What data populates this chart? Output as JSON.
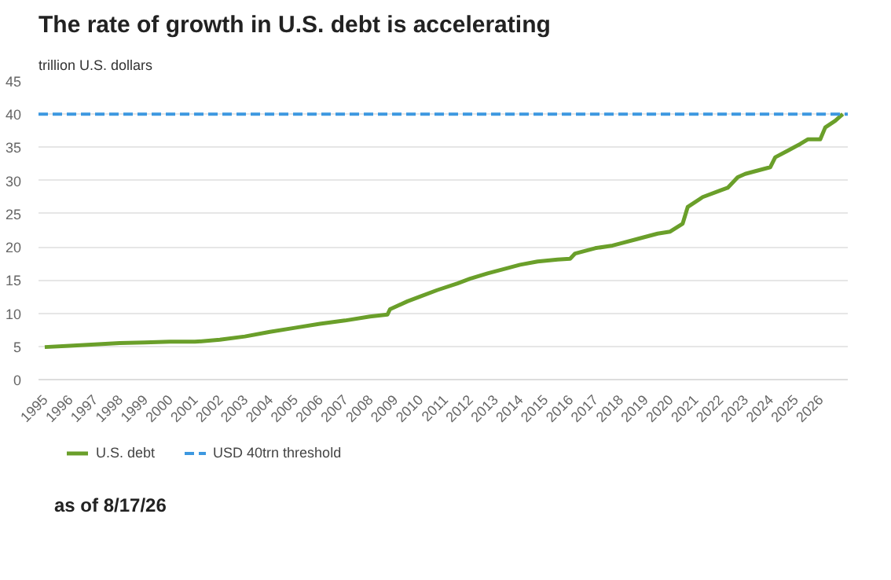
{
  "chart_data": {
    "type": "line",
    "title": "The rate of growth in U.S. debt is accelerating",
    "ylabel": "trillion U.S. dollars",
    "series": [
      {
        "name": "U.S. debt",
        "color": "#6a9f2a",
        "x": [
          1995,
          1996,
          1997,
          1998,
          1999,
          2000,
          2001,
          2002,
          2003,
          2004,
          2005,
          2006,
          2007,
          2008,
          2008.7,
          2008.8,
          2009.5,
          2010,
          2010.7,
          2011.5,
          2012,
          2012.7,
          2013.5,
          2014,
          2014.7,
          2015.5,
          2016,
          2016.2,
          2017,
          2017.7,
          2018,
          2018.7,
          2019.5,
          2020,
          2020.5,
          2020.7,
          2021.3,
          2022,
          2022.3,
          2022.7,
          2023,
          2023.5,
          2024,
          2024.2,
          2024.7,
          2025.2,
          2025.5,
          2026,
          2026.2,
          2026.6,
          2026.9
        ],
        "values": [
          4.9,
          5.1,
          5.3,
          5.5,
          5.6,
          5.7,
          5.7,
          6.0,
          6.5,
          7.2,
          7.8,
          8.4,
          8.9,
          9.5,
          9.8,
          10.6,
          11.8,
          12.5,
          13.5,
          14.5,
          15.2,
          16.0,
          16.8,
          17.3,
          17.8,
          18.1,
          18.2,
          19.0,
          19.8,
          20.2,
          20.5,
          21.2,
          22.0,
          22.3,
          23.5,
          26.0,
          27.5,
          28.5,
          28.9,
          30.5,
          31.0,
          31.5,
          32.0,
          33.5,
          34.5,
          35.5,
          36.2,
          36.2,
          38.0,
          39.0,
          40.0
        ]
      }
    ],
    "ref_lines": [
      {
        "axis": "y",
        "value": 40,
        "label": "USD 40trn threshold",
        "color": "#3d98e0",
        "line_style": "dashed"
      }
    ],
    "xlim": [
      1994.75,
      2027.1
    ],
    "xticks": [
      1995,
      1996,
      1997,
      1998,
      1999,
      2000,
      2001,
      2002,
      2003,
      2004,
      2005,
      2006,
      2007,
      2008,
      2009,
      2010,
      2011,
      2012,
      2013,
      2014,
      2015,
      2016,
      2017,
      2018,
      2019,
      2020,
      2021,
      2022,
      2023,
      2024,
      2025,
      2026
    ],
    "ylim": [
      0,
      45
    ],
    "yticks": [
      0,
      5,
      10,
      15,
      20,
      25,
      30,
      35,
      40,
      45
    ],
    "grid": "y",
    "legend": "bottom",
    "marker": "none",
    "line_style": "solid",
    "annotations": [
      "as of 8/17/26"
    ]
  }
}
